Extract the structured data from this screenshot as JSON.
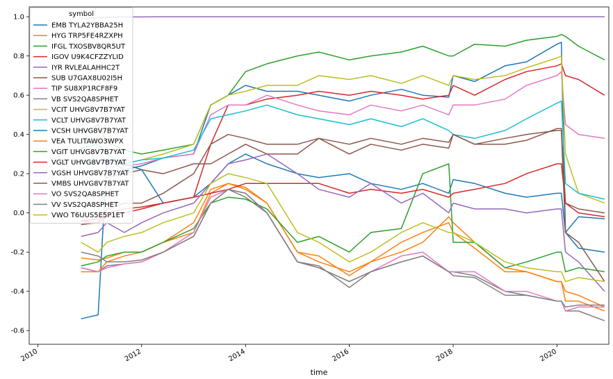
{
  "chart_data": {
    "type": "line",
    "xlabel": "time",
    "ylabel": "",
    "xlim": [
      "2009-11-01",
      "2020-12-31"
    ],
    "ylim": [
      -0.67,
      1.05
    ],
    "x_ticks": [
      "2010",
      "2012",
      "2014",
      "2016",
      "2018",
      "2020"
    ],
    "y_ticks": [
      "1.0",
      "0.8",
      "0.6",
      "0.4",
      "0.2",
      "0.0",
      "-0.2",
      "-0.4",
      "-0.6"
    ],
    "legend": {
      "title": "symbol",
      "placement": "top-left"
    },
    "x": [
      "2010-11",
      "2011-03",
      "2011-05",
      "2011-09",
      "2012-01",
      "2012-06",
      "2013-01",
      "2013-05",
      "2013-09",
      "2014-01",
      "2014-06",
      "2015-01",
      "2015-06",
      "2016-01",
      "2016-06",
      "2017-01",
      "2017-06",
      "2017-12",
      "2018-01",
      "2018-06",
      "2019-01",
      "2019-06",
      "2020-01",
      "2020-02",
      "2020-03",
      "2020-06",
      "2020-12"
    ],
    "series": [
      {
        "name": "EMB TYLA2YBBA25H",
        "color": "#1f77b4",
        "values": [
          -0.54,
          -0.52,
          0.27,
          0.22,
          0.24,
          0.28,
          0.3,
          0.55,
          0.6,
          0.65,
          0.62,
          0.62,
          0.6,
          0.57,
          0.6,
          0.63,
          0.6,
          0.59,
          0.7,
          0.67,
          0.75,
          0.77,
          0.86,
          0.87,
          -0.1,
          -0.02,
          -0.03
        ]
      },
      {
        "name": "HYG TRP5FE4RZXPH",
        "color": "#ff7f0e",
        "values": [
          -0.23,
          -0.24,
          -0.23,
          -0.2,
          -0.2,
          -0.15,
          -0.1,
          0.1,
          0.15,
          0.13,
          0.05,
          -0.2,
          -0.22,
          -0.32,
          -0.25,
          -0.2,
          -0.15,
          -0.02,
          -0.05,
          -0.15,
          -0.28,
          -0.3,
          -0.35,
          -0.35,
          -0.45,
          -0.45,
          -0.5
        ]
      },
      {
        "name": "IFGL TXOSBV8QR5UT",
        "color": "#2ca02c",
        "values": [
          0.4,
          0.45,
          0.36,
          0.32,
          0.3,
          0.32,
          0.35,
          0.55,
          0.6,
          0.72,
          0.76,
          0.8,
          0.82,
          0.78,
          0.8,
          0.82,
          0.85,
          0.8,
          0.8,
          0.86,
          0.85,
          0.88,
          0.9,
          0.91,
          0.9,
          0.85,
          0.78
        ]
      },
      {
        "name": "IGOV U9K4CFZZYLID",
        "color": "#d62728",
        "values": [
          -0.04,
          -0.03,
          0.0,
          0.02,
          0.03,
          0.05,
          0.08,
          0.35,
          0.55,
          0.55,
          0.58,
          0.6,
          0.62,
          0.6,
          0.62,
          0.6,
          0.58,
          0.6,
          0.65,
          0.6,
          0.68,
          0.72,
          0.75,
          0.76,
          0.7,
          0.68,
          0.6
        ]
      },
      {
        "name": "IYR RVLEALAHHC2T",
        "color": "#9467bd",
        "values": [
          0.99,
          0.995,
          0.997,
          0.999,
          0.999,
          1.0,
          1.0,
          1.0,
          1.0,
          1.0,
          1.0,
          1.0,
          1.0,
          1.0,
          1.0,
          1.0,
          1.0,
          1.0,
          1.0,
          1.0,
          1.0,
          1.0,
          1.0,
          1.0,
          1.0,
          1.0,
          1.0
        ]
      },
      {
        "name": "SUB U7GAX8U02I5H",
        "color": "#8c564b",
        "values": [
          0.2,
          0.22,
          0.18,
          0.2,
          0.22,
          0.2,
          0.25,
          0.25,
          0.3,
          0.35,
          0.3,
          0.3,
          0.38,
          0.3,
          0.35,
          0.32,
          0.35,
          0.33,
          0.4,
          0.35,
          0.35,
          0.37,
          0.43,
          0.43,
          0.05,
          0.02,
          0.0
        ]
      },
      {
        "name": "TIP SU8XP1RCF8F9",
        "color": "#e377c2",
        "values": [
          0.3,
          0.31,
          0.26,
          0.24,
          0.25,
          0.28,
          0.3,
          0.5,
          0.55,
          0.55,
          0.6,
          0.55,
          0.52,
          0.5,
          0.55,
          0.52,
          0.55,
          0.5,
          0.55,
          0.55,
          0.58,
          0.65,
          0.7,
          0.72,
          0.45,
          0.4,
          0.38
        ]
      },
      {
        "name": "VB SVS2QA8SPHET",
        "color": "#7f7f7f",
        "values": [
          -0.28,
          -0.3,
          -0.27,
          -0.26,
          -0.25,
          -0.2,
          -0.12,
          0.05,
          0.12,
          0.08,
          0.0,
          -0.25,
          -0.27,
          -0.38,
          -0.3,
          -0.25,
          -0.22,
          -0.3,
          -0.3,
          -0.32,
          -0.4,
          -0.42,
          -0.45,
          -0.45,
          -0.5,
          -0.5,
          -0.55
        ]
      },
      {
        "name": "VCIT UHVG8V7B7YAT",
        "color": "#bcbd22",
        "values": [
          0.35,
          0.37,
          0.3,
          0.25,
          0.27,
          0.3,
          0.35,
          0.55,
          0.6,
          0.62,
          0.65,
          0.65,
          0.7,
          0.68,
          0.7,
          0.66,
          0.7,
          0.65,
          0.7,
          0.68,
          0.7,
          0.74,
          0.79,
          0.8,
          0.3,
          0.1,
          0.05
        ]
      },
      {
        "name": "VCLT UHVG8V7B7YAT",
        "color": "#17becf",
        "values": [
          0.33,
          0.35,
          0.3,
          0.25,
          0.27,
          0.28,
          0.32,
          0.48,
          0.5,
          0.52,
          0.55,
          0.5,
          0.48,
          0.45,
          0.48,
          0.44,
          0.48,
          0.42,
          0.4,
          0.38,
          0.42,
          0.48,
          0.56,
          0.57,
          0.15,
          0.1,
          0.07
        ]
      },
      {
        "name": "VCSH UHVG8V7B7YAT",
        "color": "#1f77b4",
        "values": [
          0.27,
          0.25,
          0.27,
          0.25,
          0.22,
          0.05,
          0.08,
          0.15,
          0.25,
          0.3,
          0.25,
          0.2,
          0.18,
          0.2,
          0.15,
          0.12,
          0.15,
          0.1,
          0.17,
          0.15,
          0.1,
          0.08,
          0.1,
          0.1,
          -0.1,
          -0.18,
          -0.2
        ]
      },
      {
        "name": "VEA TULITAWO3WPX",
        "color": "#ff7f0e",
        "values": [
          -0.3,
          -0.3,
          -0.25,
          -0.22,
          -0.2,
          -0.15,
          -0.05,
          0.12,
          0.15,
          0.12,
          0.05,
          -0.2,
          -0.25,
          -0.3,
          -0.25,
          -0.15,
          -0.1,
          -0.05,
          -0.1,
          -0.18,
          -0.3,
          -0.3,
          -0.35,
          -0.35,
          -0.4,
          -0.42,
          -0.48
        ]
      },
      {
        "name": "VGIT UHVG8V7B7YAT",
        "color": "#2ca02c",
        "values": [
          -0.27,
          -0.25,
          -0.22,
          -0.2,
          -0.2,
          -0.15,
          -0.08,
          0.05,
          0.08,
          0.07,
          0.02,
          -0.15,
          -0.12,
          -0.2,
          -0.1,
          -0.08,
          0.2,
          0.25,
          -0.15,
          -0.15,
          -0.28,
          -0.25,
          -0.2,
          -0.2,
          -0.3,
          -0.28,
          -0.3
        ]
      },
      {
        "name": "VGLT UHVG8V7B7YAT",
        "color": "#d62728",
        "values": [
          -0.04,
          -0.05,
          -0.02,
          0.0,
          0.02,
          0.05,
          0.08,
          0.1,
          0.12,
          0.15,
          0.15,
          0.15,
          0.15,
          0.1,
          0.12,
          0.1,
          0.12,
          0.08,
          0.1,
          0.12,
          0.15,
          0.2,
          0.25,
          0.25,
          0.05,
          0.0,
          -0.02
        ]
      },
      {
        "name": "VGSH UHVG8V7B7YAT",
        "color": "#9467bd",
        "values": [
          -0.12,
          -0.1,
          -0.05,
          -0.1,
          -0.05,
          0.0,
          0.05,
          0.15,
          0.25,
          0.27,
          0.3,
          0.2,
          0.12,
          0.08,
          0.15,
          0.05,
          0.1,
          0.0,
          0.05,
          0.02,
          0.02,
          0.0,
          0.02,
          0.02,
          -0.2,
          -0.25,
          -0.4
        ]
      },
      {
        "name": "VMBS UHVG8V7B7YAT",
        "color": "#8c564b",
        "values": [
          -0.06,
          -0.05,
          0.02,
          0.05,
          0.05,
          0.1,
          0.2,
          0.35,
          0.4,
          0.38,
          0.35,
          0.35,
          0.38,
          0.35,
          0.38,
          0.35,
          0.38,
          0.36,
          0.4,
          0.35,
          0.38,
          0.4,
          0.42,
          0.42,
          -0.1,
          -0.15,
          -0.35
        ]
      },
      {
        "name": "VO SVS2QA8SPHET",
        "color": "#e377c2",
        "values": [
          -0.28,
          -0.3,
          -0.28,
          -0.26,
          -0.25,
          -0.2,
          -0.1,
          0.08,
          0.12,
          0.1,
          0.0,
          -0.25,
          -0.28,
          -0.35,
          -0.3,
          -0.22,
          -0.2,
          -0.3,
          -0.3,
          -0.3,
          -0.4,
          -0.4,
          -0.45,
          -0.45,
          -0.5,
          -0.48,
          -0.48
        ]
      },
      {
        "name": "VV SVS2QA8SPHET",
        "color": "#7f7f7f",
        "values": [
          -0.2,
          -0.22,
          -0.25,
          -0.25,
          -0.24,
          -0.2,
          -0.12,
          0.05,
          0.12,
          0.1,
          0.0,
          -0.25,
          -0.28,
          -0.35,
          -0.3,
          -0.25,
          -0.22,
          -0.3,
          -0.32,
          -0.33,
          -0.42,
          -0.42,
          -0.45,
          -0.45,
          -0.48,
          -0.47,
          -0.47
        ]
      },
      {
        "name": "VWO T6UUS5E5P1ET",
        "color": "#bcbd22",
        "values": [
          -0.15,
          -0.2,
          -0.15,
          -0.12,
          -0.1,
          -0.05,
          0.0,
          0.15,
          0.2,
          0.18,
          0.15,
          -0.1,
          -0.15,
          -0.25,
          -0.2,
          -0.1,
          -0.05,
          -0.1,
          -0.1,
          -0.15,
          -0.25,
          -0.28,
          -0.3,
          -0.3,
          -0.35,
          -0.33,
          -0.35
        ]
      }
    ]
  }
}
